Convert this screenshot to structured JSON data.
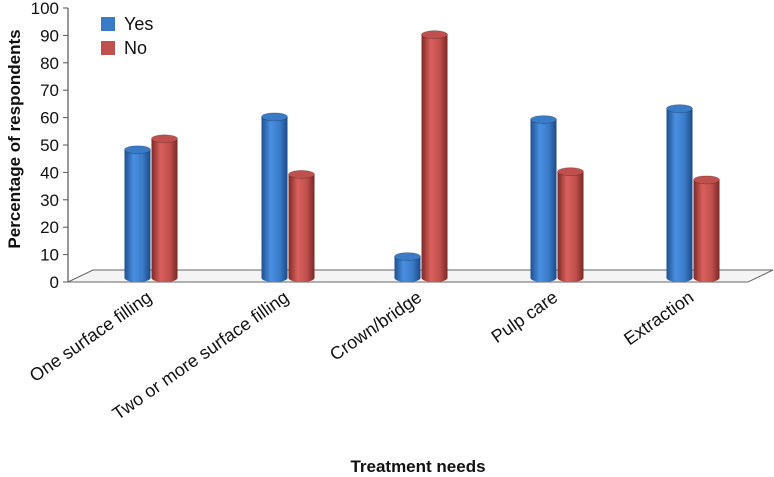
{
  "chart_data": {
    "type": "bar",
    "title": "",
    "xlabel": "Treatment needs",
    "ylabel": "Percentage of respondents",
    "ylim": [
      0,
      100
    ],
    "yticks": [
      0,
      10,
      20,
      30,
      40,
      50,
      60,
      70,
      80,
      90,
      100
    ],
    "grid": false,
    "legend_position": "top-left",
    "categories": [
      "One surface filling",
      "Two or more surface filling",
      "Crown/bridge",
      "Pulp care",
      "Extraction"
    ],
    "series": [
      {
        "name": "Yes",
        "color": "#3a7bc8",
        "values": [
          49,
          61,
          10,
          60,
          64
        ]
      },
      {
        "name": "No",
        "color": "#c0504d",
        "values": [
          53,
          40,
          91,
          41,
          38
        ]
      }
    ]
  }
}
